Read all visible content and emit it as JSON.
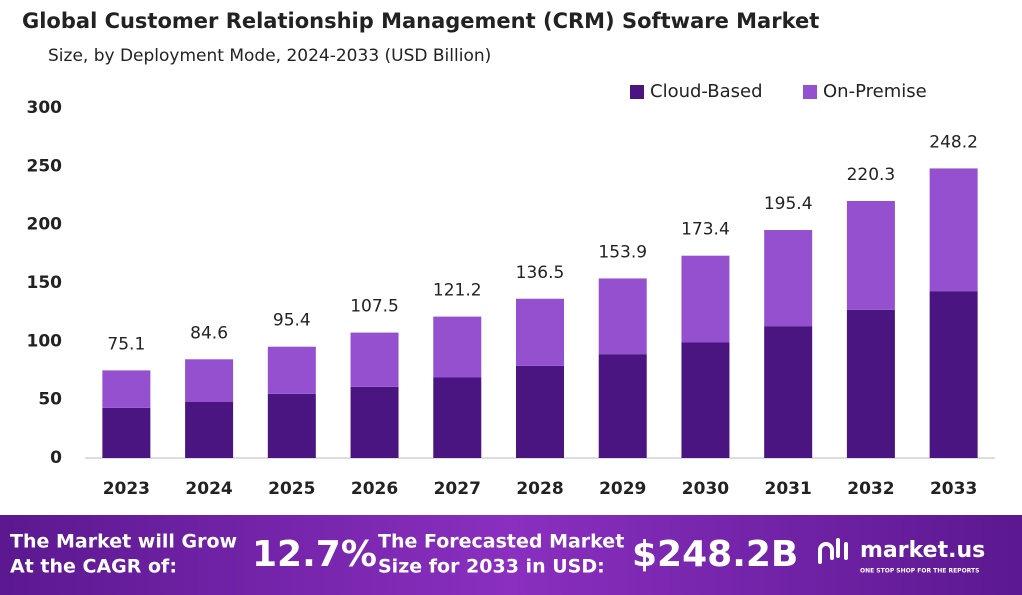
{
  "chart_data": {
    "type": "stacked_bar",
    "title": "Global Customer Relationship Management (CRM) Software Market",
    "subtitle": "Size, by Deployment Mode, 2024-2033 (USD Billion)",
    "categories": [
      "2023",
      "2024",
      "2025",
      "2026",
      "2027",
      "2028",
      "2029",
      "2030",
      "2031",
      "2032",
      "2033"
    ],
    "series": [
      {
        "name": "Cloud-Based",
        "color": "#4a1580",
        "values": [
          43,
          48,
          55,
          61,
          69,
          79,
          89,
          99,
          113,
          127,
          143
        ]
      },
      {
        "name": "On-Premise",
        "color": "#9450cf",
        "values": [
          32.1,
          36.6,
          40.4,
          46.5,
          52.2,
          57.5,
          64.9,
          74.4,
          82.4,
          93.3,
          105.2
        ]
      }
    ],
    "totals": [
      75.1,
      84.6,
      95.4,
      107.5,
      121.2,
      136.5,
      153.9,
      173.4,
      195.4,
      220.3,
      248.2
    ],
    "ylim": [
      0,
      300
    ],
    "yticks": [
      0,
      50,
      100,
      150,
      200,
      250,
      300
    ],
    "grid": false,
    "legend": "top-right"
  },
  "banner": {
    "cagr_text": [
      "The Market will Grow",
      "At the CAGR of:"
    ],
    "cagr": "12.7%",
    "forecast_text": [
      "The Forecasted Market",
      "Size for 2033 in USD:"
    ],
    "forecast": "$248.2B",
    "brand": "market.us",
    "tagline": "ONE STOP SHOP FOR THE REPORTS"
  }
}
